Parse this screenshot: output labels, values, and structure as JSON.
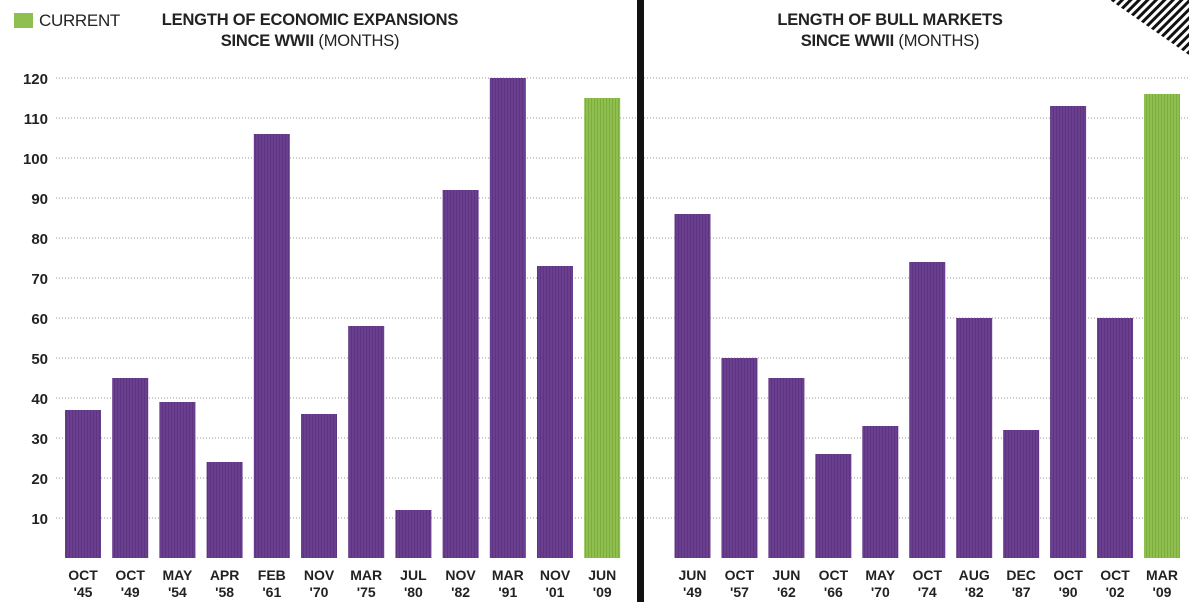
{
  "legend": {
    "label": "CURRENT",
    "color": "#8fbf4f"
  },
  "colors": {
    "bar": "#6b3f8f",
    "current": "#8fbf4f",
    "divider": "#111111",
    "grid": "#9a9a9a",
    "text": "#222222"
  },
  "chart_data": [
    {
      "type": "bar",
      "title_line1": "LENGTH OF ECONOMIC EXPANSIONS",
      "title_bold2": "SINCE WWII",
      "title_unit": "(MONTHS)",
      "ylim": [
        0,
        120
      ],
      "yticks": [
        "10",
        "20",
        "30",
        "40",
        "50",
        "60",
        "70",
        "80",
        "90",
        "100",
        "110",
        "120"
      ],
      "categories": [
        [
          "OCT",
          "'45"
        ],
        [
          "OCT",
          "'49"
        ],
        [
          "MAY",
          "'54"
        ],
        [
          "APR",
          "'58"
        ],
        [
          "FEB",
          "'61"
        ],
        [
          "NOV",
          "'70"
        ],
        [
          "MAR",
          "'75"
        ],
        [
          "JUL",
          "'80"
        ],
        [
          "NOV",
          "'82"
        ],
        [
          "MAR",
          "'91"
        ],
        [
          "NOV",
          "'01"
        ],
        [
          "JUN",
          "'09"
        ]
      ],
      "values": [
        37,
        45,
        39,
        24,
        106,
        36,
        58,
        12,
        92,
        120,
        73,
        115
      ],
      "highlight_index": 11
    },
    {
      "type": "bar",
      "title_line1": "LENGTH OF BULL MARKETS",
      "title_bold2": "SINCE WWII",
      "title_unit": "(MONTHS)",
      "ylim": [
        0,
        120
      ],
      "categories": [
        [
          "JUN",
          "'49"
        ],
        [
          "OCT",
          "'57"
        ],
        [
          "JUN",
          "'62"
        ],
        [
          "OCT",
          "'66"
        ],
        [
          "MAY",
          "'70"
        ],
        [
          "OCT",
          "'74"
        ],
        [
          "AUG",
          "'82"
        ],
        [
          "DEC",
          "'87"
        ],
        [
          "OCT",
          "'90"
        ],
        [
          "OCT",
          "'02"
        ],
        [
          "MAR",
          "'09"
        ]
      ],
      "values": [
        86,
        50,
        45,
        26,
        33,
        74,
        60,
        32,
        113,
        60,
        116
      ],
      "highlight_index": 10
    }
  ]
}
